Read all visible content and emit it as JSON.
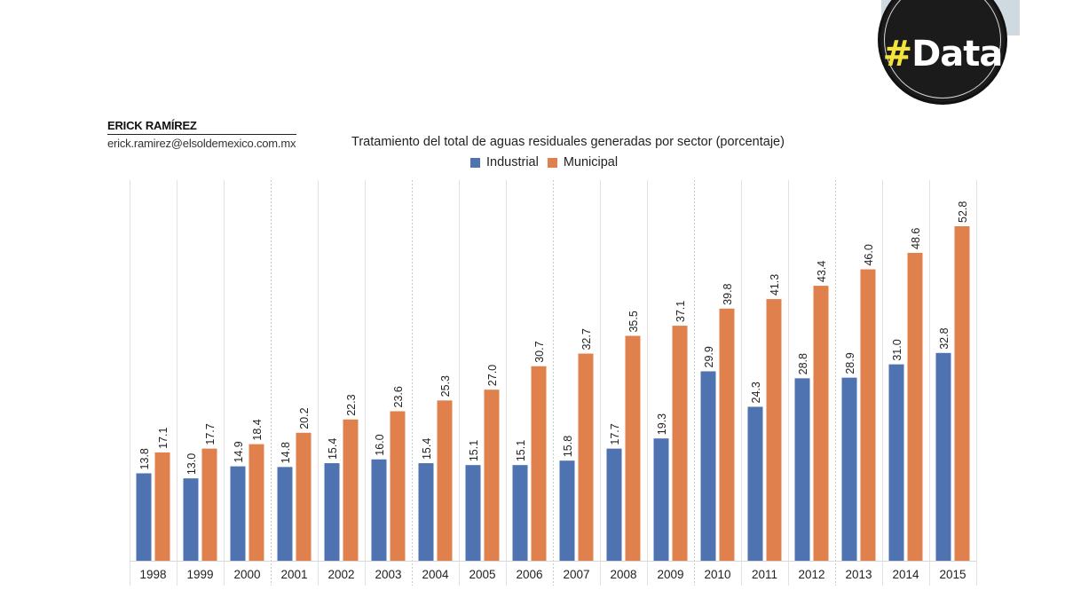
{
  "badge": {
    "hash": "#",
    "word": "Data"
  },
  "author": {
    "name": "ERICK RAMÍREZ",
    "email": "erick.ramirez@elsoldemexico.com.mx"
  },
  "colors": {
    "industrial": "#4f72b0",
    "municipal": "#e0804c",
    "badge_background": "#1b1b1b",
    "badge_hash": "#f3e33b"
  },
  "chart_data": {
    "type": "bar",
    "title": "Tratamiento del total de aguas residuales generadas por sector (porcentaje)",
    "xlabel": "",
    "ylabel": "",
    "ylim": [
      0,
      55
    ],
    "grid": false,
    "legend_position": "top-center",
    "categories": [
      "1998",
      "1999",
      "2000",
      "2001",
      "2002",
      "2003",
      "2004",
      "2005",
      "2006",
      "2007",
      "2008",
      "2009",
      "2010",
      "2011",
      "2012",
      "2013",
      "2014",
      "2015"
    ],
    "series": [
      {
        "name": "Industrial",
        "color": "#4f72b0",
        "values": [
          13.8,
          13.0,
          14.9,
          14.8,
          15.4,
          16.0,
          15.4,
          15.1,
          15.1,
          15.8,
          17.7,
          19.3,
          29.9,
          24.3,
          28.8,
          28.9,
          31.0,
          32.8
        ],
        "labels": [
          "13.8",
          "13.0",
          "14.9",
          "14.8",
          "15.4",
          "16.0",
          "15.4",
          "15.1",
          "15.1",
          "15.8",
          "17.7",
          "19.3",
          "29.9",
          "24.3",
          "28.8",
          "28.9",
          "31.0",
          "32.8"
        ]
      },
      {
        "name": "Municipal",
        "color": "#e0804c",
        "values": [
          17.1,
          17.7,
          18.4,
          20.2,
          22.3,
          23.6,
          25.3,
          27.0,
          30.7,
          32.7,
          35.5,
          37.1,
          39.8,
          41.3,
          43.4,
          46.0,
          48.6,
          52.8
        ],
        "labels": [
          "17.1",
          "17.7",
          "18.4",
          "20.2",
          "22.3",
          "23.6",
          "25.3",
          "27.0",
          "30.7",
          "32.7",
          "35.5",
          "37.1",
          "39.8",
          "41.3",
          "43.4",
          "46.0",
          "48.6",
          "52.8"
        ]
      }
    ]
  }
}
